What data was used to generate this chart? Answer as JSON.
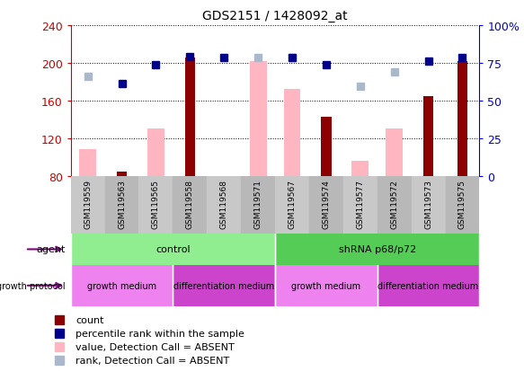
{
  "title": "GDS2151 / 1428092_at",
  "samples": [
    "GSM119559",
    "GSM119563",
    "GSM119565",
    "GSM119558",
    "GSM119568",
    "GSM119571",
    "GSM119567",
    "GSM119574",
    "GSM119577",
    "GSM119572",
    "GSM119573",
    "GSM119575"
  ],
  "count_values": [
    null,
    84,
    null,
    206,
    null,
    null,
    null,
    143,
    null,
    null,
    165,
    202
  ],
  "value_absent": [
    108,
    null,
    130,
    null,
    null,
    202,
    172,
    null,
    96,
    130,
    null,
    null
  ],
  "rank_absent": [
    186,
    null,
    null,
    null,
    null,
    206,
    206,
    null,
    175,
    190,
    null,
    null
  ],
  "percentile_rank": [
    null,
    178,
    198,
    207,
    206,
    null,
    206,
    198,
    null,
    null,
    202,
    206
  ],
  "ylim_left": [
    80,
    240
  ],
  "ylim_right": [
    0,
    100
  ],
  "left_ticks": [
    80,
    120,
    160,
    200,
    240
  ],
  "right_ticks": [
    0,
    25,
    50,
    75,
    100
  ],
  "agent_groups": [
    {
      "label": "control",
      "start": 0,
      "end": 6,
      "color": "#90ee90"
    },
    {
      "label": "shRNA p68/p72",
      "start": 6,
      "end": 12,
      "color": "#55cc55"
    }
  ],
  "growth_groups": [
    {
      "label": "growth medium",
      "start": 0,
      "end": 3,
      "color": "#ee82ee"
    },
    {
      "label": "differentiation medium",
      "start": 3,
      "end": 6,
      "color": "#cc44cc"
    },
    {
      "label": "growth medium",
      "start": 6,
      "end": 9,
      "color": "#ee82ee"
    },
    {
      "label": "differentiation medium",
      "start": 9,
      "end": 12,
      "color": "#cc44cc"
    }
  ],
  "bar_color_dark_red": "#8b0000",
  "bar_color_pink": "#ffb6c1",
  "dot_color_dark_blue": "#00008b",
  "dot_color_light_blue": "#aab8cc",
  "tick_label_color_left": "#cc0000",
  "tick_label_color_right": "#0000cc",
  "grid_color": "#000000",
  "background_color": "#ffffff"
}
